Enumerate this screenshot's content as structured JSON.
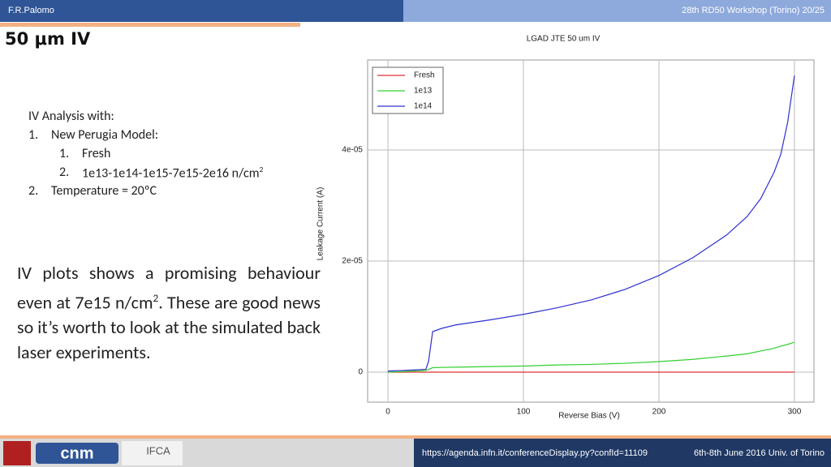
{
  "header": {
    "author": "F.R.Palomo",
    "event": "28th RD50 Workshop (Torino) 20/25"
  },
  "slide_title": "50 μm IV",
  "analysis": {
    "intro": "IV Analysis with:",
    "item1_num": "1.",
    "item1": "New Perugia Model:",
    "sub1_num": "1.",
    "sub1": "Fresh",
    "sub2_num": "2.",
    "sub2": "1e13-1e14-1e15-7e15-2e16 n/cm",
    "sub2_sup": "2",
    "item2_num": "2.",
    "item2": "Temperature = 20ºC"
  },
  "paragraph": {
    "part1": "IV plots shows a promising behaviour even at 7e15 n/cm",
    "sup": "2",
    "part2": ". These are good news so it’s worth to look at the simulated back laser experiments."
  },
  "footer": {
    "logo1": "cnm",
    "logo2": "IFCA",
    "url": "https://agenda.infn.it/conferenceDisplay.py?confId=11109",
    "date": "6th-8th June  2016  Univ. of Torino"
  },
  "chart_data": {
    "type": "line",
    "title": "LGAD JTE 50 um IV",
    "x_label": "Reverse Bias (V)",
    "y_label": "Leakage Current (A)",
    "x": [
      0,
      10,
      20,
      28,
      30,
      33,
      40,
      50,
      75,
      100,
      125,
      150,
      175,
      200,
      225,
      250,
      265,
      275,
      285,
      290,
      295,
      300
    ],
    "series": [
      {
        "name": "Fresh",
        "color": "#e03030",
        "values": [
          0,
          0,
          0,
          0,
          0,
          0,
          0,
          0,
          0,
          0,
          0,
          0,
          0,
          0,
          0,
          0,
          0,
          0,
          0,
          0,
          0,
          0
        ]
      },
      {
        "name": "1e13",
        "color": "#30d030",
        "values": [
          0,
          1e-07,
          2e-07,
          3e-07,
          5e-07,
          8e-07,
          8.5e-07,
          9e-07,
          1e-06,
          1.1e-06,
          1.3e-06,
          1.4e-06,
          1.6e-06,
          1.9e-06,
          2.3e-06,
          2.9e-06,
          3.3e-06,
          3.8e-06,
          4.3e-06,
          4.7e-06,
          5e-06,
          5.4e-06
        ]
      },
      {
        "name": "1e14",
        "color": "#3030d0",
        "values": [
          2e-07,
          3e-07,
          4e-07,
          5e-07,
          2e-06,
          7.3e-06,
          7.9e-06,
          8.5e-06,
          9.4e-06,
          1.04e-05,
          1.16e-05,
          1.3e-05,
          1.49e-05,
          1.74e-05,
          2.06e-05,
          2.47e-05,
          2.8e-05,
          3.12e-05,
          3.6e-05,
          3.93e-05,
          4.5e-05,
          5.34e-05
        ]
      }
    ],
    "xlim": [
      -15,
      314.4
    ],
    "ylim": [
      -5.4e-06,
      5.62e-05
    ],
    "xticks": [
      0,
      100,
      200,
      300
    ],
    "yticks": [
      0,
      {
        "value": 2e-05,
        "label": "2e-05"
      },
      {
        "value": 4e-05,
        "label": "4e-05"
      }
    ],
    "grid": true,
    "legend": "upper-left"
  }
}
